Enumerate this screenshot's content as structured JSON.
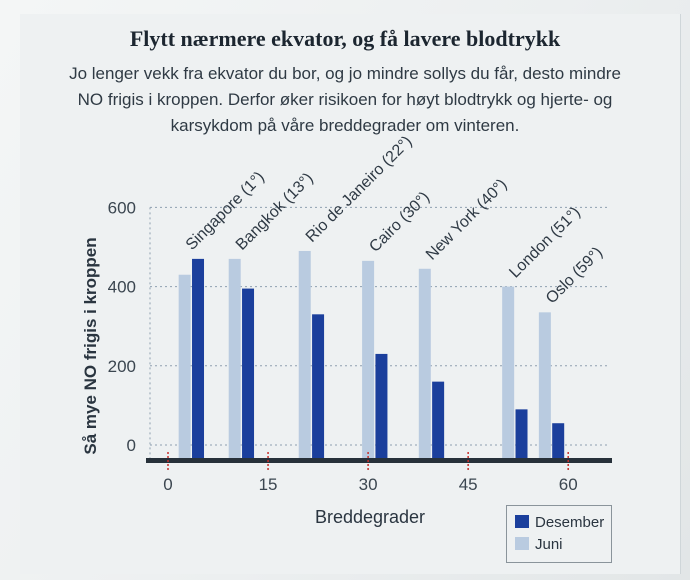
{
  "heading": "Flytt nærmere ekvator, og få lavere blodtrykk",
  "subtitle_lines": [
    "Jo lenger vekk fra ekvator du bor, og jo mindre sollys du får, desto mindre",
    "NO frigis i kroppen. Derfor øker risikoen for høyt blodtrykk og hjerte- og",
    "karsykdom på våre breddegrader om vinteren."
  ],
  "colors": {
    "desember": "#1b3f9c",
    "juni": "#b9cbe0",
    "axis": "#27313a",
    "grid": "#8fa0b0",
    "tick_red": "#c8302c"
  },
  "chart_data": {
    "type": "bar",
    "xlabel": "Breddegrader",
    "ylabel": "Så mye NO frigis i kroppen",
    "xlim": [
      -3,
      62
    ],
    "ylim": [
      -40,
      600
    ],
    "x_ticks": [
      0,
      15,
      30,
      45,
      60
    ],
    "y_ticks": [
      0,
      200,
      400,
      600
    ],
    "grid": true,
    "legend": "bottom-right",
    "cities": [
      "Singapore (1°)",
      "Bangkok (13°)",
      "Rio de Janeiro (22°)",
      "Cairo (30°)",
      "New York (40°)",
      "London (51°)",
      "Oslo (59°)"
    ],
    "latitudes": [
      1,
      13,
      22,
      30,
      40,
      51,
      59
    ],
    "series": [
      {
        "name": "Desember",
        "x": [
          4.5,
          12,
          22.5,
          32,
          40.5,
          53,
          58.5
        ],
        "values": [
          470,
          395,
          330,
          230,
          160,
          90,
          55
        ]
      },
      {
        "name": "Juni",
        "x": [
          2.5,
          10,
          20.5,
          30,
          38.5,
          51,
          56.5
        ],
        "values": [
          430,
          470,
          490,
          465,
          445,
          400,
          335
        ]
      }
    ]
  }
}
